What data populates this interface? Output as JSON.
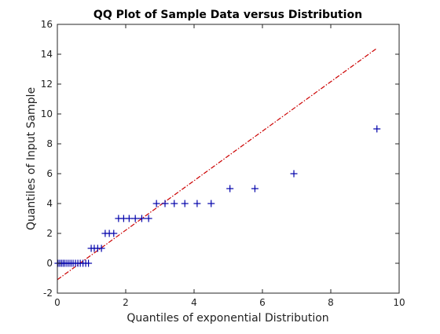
{
  "chart_data": {
    "type": "scatter",
    "title": "QQ Plot of Sample Data versus Distribution",
    "xlabel": "Quantiles of exponential Distribution",
    "ylabel": "Quantiles of Input Sample",
    "xlim": [
      0,
      10
    ],
    "ylim": [
      -2,
      16
    ],
    "xticks": [
      0,
      2,
      4,
      6,
      8,
      10
    ],
    "yticks": [
      -2,
      0,
      2,
      4,
      6,
      8,
      10,
      12,
      14,
      16
    ],
    "grid": false,
    "marker": "+",
    "marker_color": "#0000aa",
    "line_color": "#cc0000",
    "reference_line": {
      "style": "dash-dot",
      "x": [
        0,
        9.35
      ],
      "y": [
        -1.1,
        14.4
      ]
    },
    "series": [
      {
        "points": [
          [
            0.02,
            0
          ],
          [
            0.07,
            0
          ],
          [
            0.12,
            0
          ],
          [
            0.17,
            0
          ],
          [
            0.22,
            0
          ],
          [
            0.28,
            0
          ],
          [
            0.34,
            0
          ],
          [
            0.4,
            0
          ],
          [
            0.46,
            0
          ],
          [
            0.53,
            0
          ],
          [
            0.6,
            0
          ],
          [
            0.67,
            0
          ],
          [
            0.75,
            0
          ],
          [
            0.83,
            0
          ],
          [
            0.91,
            0
          ],
          [
            0.99,
            1
          ],
          [
            1.08,
            1
          ],
          [
            1.18,
            1
          ],
          [
            1.29,
            1
          ],
          [
            1.4,
            2
          ],
          [
            1.52,
            2
          ],
          [
            1.65,
            2
          ],
          [
            1.79,
            3
          ],
          [
            1.94,
            3
          ],
          [
            2.1,
            3
          ],
          [
            2.28,
            3
          ],
          [
            2.47,
            3
          ],
          [
            2.67,
            3
          ],
          [
            2.9,
            4
          ],
          [
            3.15,
            4
          ],
          [
            3.42,
            4
          ],
          [
            3.73,
            4
          ],
          [
            4.09,
            4
          ],
          [
            4.5,
            4
          ],
          [
            5.05,
            5
          ],
          [
            5.78,
            5
          ],
          [
            6.92,
            6
          ],
          [
            9.35,
            9
          ]
        ]
      }
    ]
  }
}
